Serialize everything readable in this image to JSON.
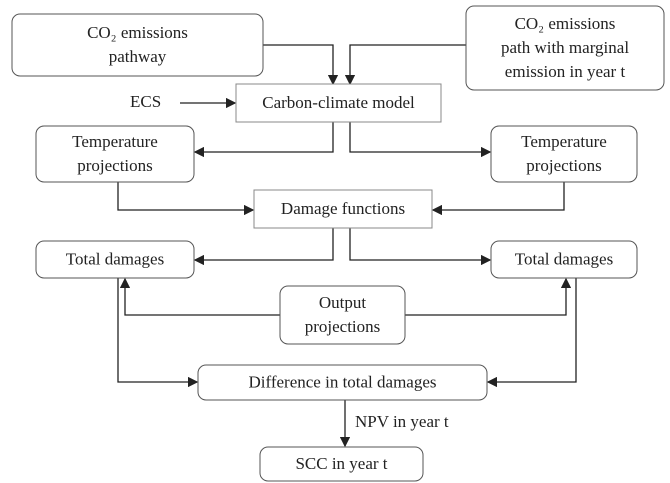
{
  "nodes": [
    {
      "lines": [
        "CO₂ emissions",
        "pathway"
      ]
    },
    {
      "lines": [
        "CO₂ emissions",
        "path with marginal",
        "emission in year t"
      ]
    },
    {
      "lines": [
        "Carbon-climate model"
      ]
    },
    {
      "lines": [
        "Temperature",
        "projections"
      ]
    },
    {
      "lines": [
        "Temperature",
        "projections"
      ]
    },
    {
      "lines": [
        "Damage functions"
      ]
    },
    {
      "lines": [
        "Total damages"
      ]
    },
    {
      "lines": [
        "Total damages"
      ]
    },
    {
      "lines": [
        "Output",
        "projections"
      ]
    },
    {
      "lines": [
        "Difference in total damages"
      ]
    },
    {
      "lines": [
        "SCC in year t"
      ]
    }
  ],
  "labels": [
    "ECS",
    "NPV in year t"
  ]
}
